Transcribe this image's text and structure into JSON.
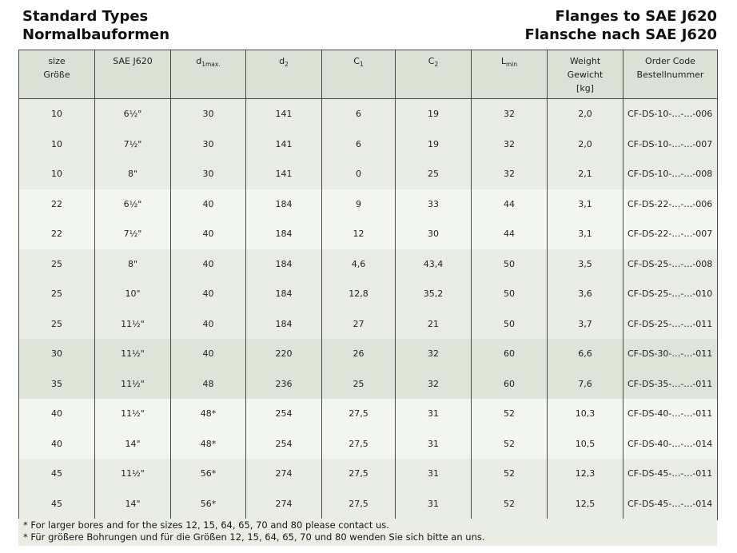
{
  "titles": {
    "left": [
      "Standard Types",
      "Normalbauformen"
    ],
    "right": [
      "Flanges to SAE J620",
      "Flansche nach SAE J620"
    ]
  },
  "table": {
    "columns": [
      {
        "id": "size",
        "lines": [
          "size",
          "Größe"
        ]
      },
      {
        "id": "sae",
        "lines": [
          "SAE J620"
        ]
      },
      {
        "id": "d1max",
        "main": "d",
        "sub": "1max."
      },
      {
        "id": "d2",
        "main": "d",
        "sub": "2"
      },
      {
        "id": "c1",
        "main": "C",
        "sub": "1"
      },
      {
        "id": "c2",
        "main": "C",
        "sub": "2"
      },
      {
        "id": "lmin",
        "main": "L",
        "sub": "min"
      },
      {
        "id": "weight",
        "lines": [
          "Weight",
          "Gewicht",
          "[kg]"
        ]
      },
      {
        "id": "code",
        "lines": [
          "Order Code",
          "Bestellnummer"
        ]
      }
    ],
    "rows": [
      {
        "shade": "b",
        "cells": [
          "10",
          "6½\"",
          "30",
          "141",
          "6",
          "19",
          "32",
          "2,0",
          "CF-DS-10-…-…-006"
        ]
      },
      {
        "shade": "b",
        "cells": [
          "10",
          "7½\"",
          "30",
          "141",
          "6",
          "19",
          "32",
          "2,0",
          "CF-DS-10-…-…-007"
        ]
      },
      {
        "shade": "b",
        "cells": [
          "10",
          "8\"",
          "30",
          "141",
          "0",
          "25",
          "32",
          "2,1",
          "CF-DS-10-…-…-008"
        ]
      },
      {
        "shade": "a",
        "cells": [
          "22",
          "6½\"",
          "40",
          "184",
          "9",
          "33",
          "44",
          "3,1",
          "CF-DS-22-…-…-006"
        ]
      },
      {
        "shade": "a",
        "cells": [
          "22",
          "7½\"",
          "40",
          "184",
          "12",
          "30",
          "44",
          "3,1",
          "CF-DS-22-…-…-007"
        ]
      },
      {
        "shade": "b",
        "cells": [
          "25",
          "8\"",
          "40",
          "184",
          "4,6",
          "43,4",
          "50",
          "3,5",
          "CF-DS-25-…-…-008"
        ]
      },
      {
        "shade": "b",
        "cells": [
          "25",
          "10\"",
          "40",
          "184",
          "12,8",
          "35,2",
          "50",
          "3,6",
          "CF-DS-25-…-…-010"
        ]
      },
      {
        "shade": "b",
        "cells": [
          "25",
          "11½\"",
          "40",
          "184",
          "27",
          "21",
          "50",
          "3,7",
          "CF-DS-25-…-…-011"
        ]
      },
      {
        "shade": "c",
        "cells": [
          "30",
          "11½\"",
          "40",
          "220",
          "26",
          "32",
          "60",
          "6,6",
          "CF-DS-30-…-…-011"
        ]
      },
      {
        "shade": "c",
        "cells": [
          "35",
          "11½\"",
          "48",
          "236",
          "25",
          "32",
          "60",
          "7,6",
          "CF-DS-35-…-…-011"
        ]
      },
      {
        "shade": "a",
        "cells": [
          "40",
          "11½\"",
          "48*",
          "254",
          "27,5",
          "31",
          "52",
          "10,3",
          "CF-DS-40-…-…-011"
        ]
      },
      {
        "shade": "a",
        "cells": [
          "40",
          "14\"",
          "48*",
          "254",
          "27,5",
          "31",
          "52",
          "10,5",
          "CF-DS-40-…-…-014"
        ]
      },
      {
        "shade": "b",
        "cells": [
          "45",
          "11½\"",
          "56*",
          "274",
          "27,5",
          "31",
          "52",
          "12,3",
          "CF-DS-45-…-…-011"
        ]
      },
      {
        "shade": "b",
        "cells": [
          "45",
          "14\"",
          "56*",
          "274",
          "27,5",
          "31",
          "52",
          "12,5",
          "CF-DS-45-…-…-014"
        ]
      }
    ]
  },
  "footnotes": {
    "en": "* For larger bores and for the sizes 12, 15, 64, 65, 70 and 80 please contact us.",
    "de": "* Für größere Bohrungen und für die Größen 12, 15, 64, 65, 70 und 80 wenden Sie sich bitte an uns."
  },
  "colors": {
    "header_bg": "#dce1d5",
    "row_light": "#f3f5f0",
    "row_gray": "#e9ece4",
    "row_dark": "#dfe4d9",
    "band_bg": "#eaede4",
    "border": "#4a4a49",
    "text": "#1f1f1f"
  }
}
